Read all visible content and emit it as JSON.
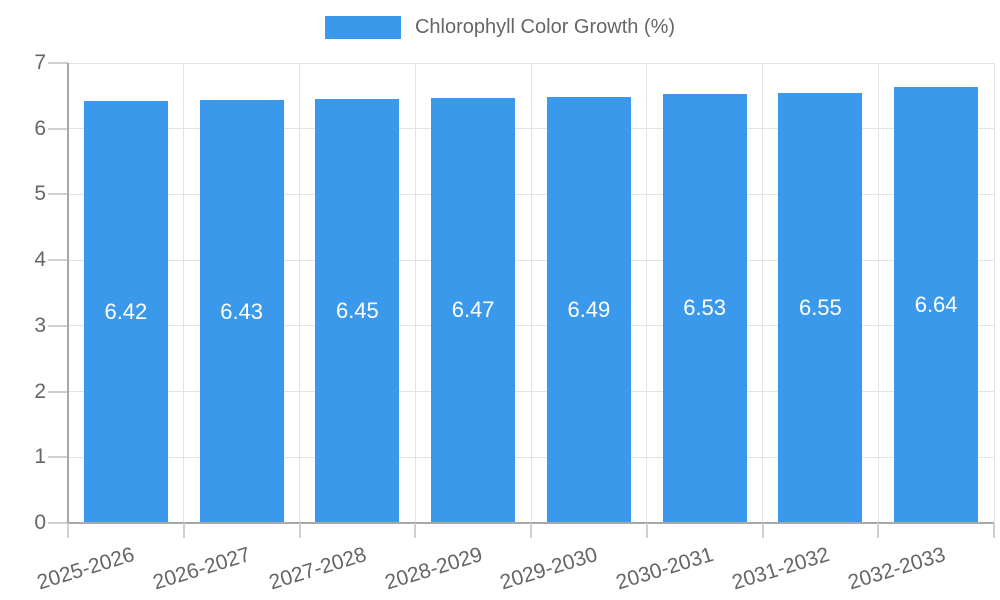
{
  "chart_data": {
    "type": "bar",
    "title": "",
    "legend": {
      "label": "Chlorophyll Color Growth (%)",
      "position": "top-center"
    },
    "categories": [
      "2025-2026",
      "2026-2027",
      "2027-2028",
      "2028-2029",
      "2029-2030",
      "2030-2031",
      "2031-2032",
      "2032-2033"
    ],
    "series": [
      {
        "name": "Chlorophyll Color Growth (%)",
        "values": [
          6.42,
          6.43,
          6.45,
          6.47,
          6.49,
          6.53,
          6.55,
          6.64
        ]
      }
    ],
    "value_labels": [
      "6.42",
      "6.43",
      "6.45",
      "6.47",
      "6.49",
      "6.53",
      "6.55",
      "6.64"
    ],
    "value_label_position": "inside-center",
    "xlabel": "",
    "ylabel": "",
    "ylim": [
      0,
      7
    ],
    "yticks": [
      0,
      1,
      2,
      3,
      4,
      5,
      6,
      7
    ],
    "grid": true,
    "x_label_rotation_deg": -17,
    "colors": {
      "bar": "#3B99EC",
      "grid": "#E3E3E3",
      "axis_line": "#A8A8A8",
      "tick": "#CFCFCF",
      "axis_label": "#666666",
      "value_label": "#FFFFFF"
    }
  }
}
